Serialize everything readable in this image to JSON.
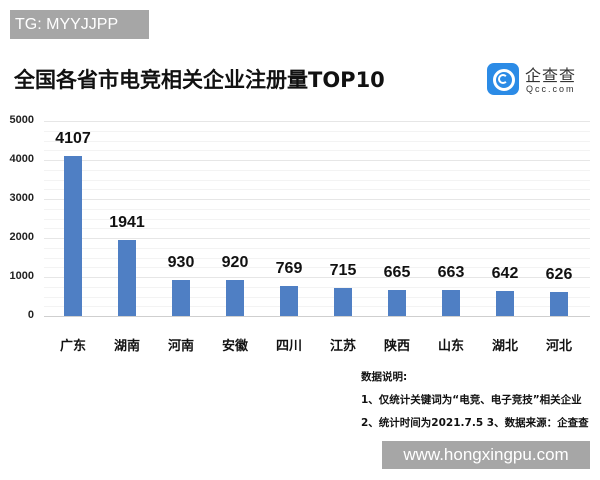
{
  "watermark_top": "TG: MYYJJPP",
  "watermark_bottom": "www.hongxingpu.com",
  "logo": {
    "cn": "企查查",
    "en": "Qcc.com",
    "color": "#2b8be6"
  },
  "notes": {
    "heading": "数据说明:",
    "line1": "1、仅统计关键词为“电竞、电子竞技”相关企业",
    "line2": "2、统计时间为2021.7.5  3、数据来源：企查查"
  },
  "chart_data": {
    "type": "bar",
    "title": "全国各省市电竞相关企业注册量TOP10",
    "xlabel": "",
    "ylabel": "",
    "categories": [
      "广东",
      "湖南",
      "河南",
      "安徽",
      "四川",
      "江苏",
      "陕西",
      "山东",
      "湖北",
      "河北"
    ],
    "values": [
      4107,
      1941,
      930,
      920,
      769,
      715,
      665,
      663,
      642,
      626
    ],
    "value_labels": [
      "4107",
      "1941",
      "930",
      "920",
      "769",
      "715",
      "665",
      "663",
      "642",
      "626"
    ],
    "ylim": [
      0,
      5000
    ],
    "yticks": [
      "5000",
      "4000",
      "3000",
      "2000",
      "1000",
      "0"
    ],
    "grid": true,
    "legend": "none",
    "bar_color": "#4f7fc4"
  }
}
